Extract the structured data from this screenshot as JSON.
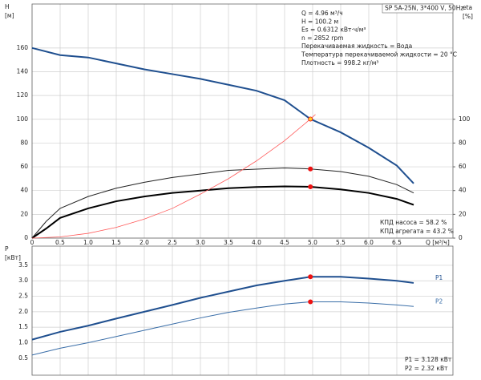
{
  "chart_data": [
    {
      "type": "line",
      "title": "SP 5A-25N, 3*400 V, 50Hz",
      "ylabel": "H",
      "yunit": "[м]",
      "y2label": "eta",
      "y2unit": "[%]",
      "xlabel": "Q [м³/ч]",
      "annotations": [
        "Q = 4.96 м³/ч",
        "H = 100.2 м",
        "Es = 0.6312 кВт·ч/м³",
        "n = 2852 rpm",
        "Перекачиваемая жидкость = Вода",
        "Температура перекачиваемой жидкости = 20 °C",
        "Плотность = 998.2 кг/м³"
      ],
      "notes": [
        "КПД насоса = 58.2 %",
        "КПД агрегата = 43.2 %"
      ],
      "xlim": [
        0,
        7.5
      ],
      "xticks": [
        0,
        0.5,
        {
          "value": 1,
          "label": "1.0"
        },
        1.5,
        {
          "value": 2,
          "label": "2.0"
        },
        2.5,
        {
          "value": 3,
          "label": "3.0"
        },
        3.5,
        {
          "value": 4,
          "label": "4.0"
        },
        4.5,
        {
          "value": 5,
          "label": "5.0"
        },
        5.5,
        {
          "value": 6,
          "label": "6.0"
        },
        6.5
      ],
      "ylim": [
        0,
        197
      ],
      "yticks": [
        0,
        20,
        40,
        60,
        80,
        100,
        120,
        140,
        160
      ],
      "y2lim": [
        0,
        197
      ],
      "y2ticks": [
        0,
        20,
        40,
        60,
        80,
        100
      ],
      "grid": true,
      "series": [
        {
          "color": "#1f4f8f",
          "width": 2,
          "axis": "y",
          "x": [
            0,
            0.5,
            1,
            1.5,
            2,
            2.5,
            3,
            3.5,
            4,
            4.5,
            4.96,
            5.5,
            6,
            6.5,
            6.8
          ],
          "values": [
            160,
            154,
            152,
            147,
            142,
            138,
            134,
            129,
            124,
            116,
            100.2,
            89,
            76,
            61,
            46
          ]
        },
        {
          "color": "#222222",
          "width": 1,
          "axis": "y2",
          "x": [
            0,
            0.25,
            0.5,
            1,
            1.5,
            2,
            2.5,
            3,
            3.5,
            4,
            4.5,
            4.96,
            5.5,
            6,
            6.5,
            6.8
          ],
          "values": [
            0,
            14,
            25,
            35,
            42,
            47,
            51,
            54,
            57,
            58,
            59,
            58.2,
            56,
            52,
            45,
            38
          ]
        },
        {
          "color": "#000000",
          "width": 2,
          "axis": "y2",
          "x": [
            0,
            0.25,
            0.5,
            1,
            1.5,
            2,
            2.5,
            3,
            3.5,
            4,
            4.5,
            4.96,
            5.5,
            6,
            6.5,
            6.8
          ],
          "values": [
            0,
            8,
            17,
            25,
            31,
            35,
            38,
            40,
            42,
            43,
            43.5,
            43.2,
            41,
            38,
            33,
            28
          ]
        },
        {
          "color": "#ff5a5a",
          "width": 0.8,
          "axis": "y",
          "x": [
            0,
            0.5,
            1,
            1.5,
            2,
            2.5,
            3,
            3.5,
            4,
            4.5,
            4.96,
            5.05
          ],
          "values": [
            0,
            1,
            4,
            9,
            16,
            25,
            37,
            50,
            65,
            82,
            100.2,
            104
          ]
        },
        {
          "mode": "markers",
          "color": "#ffcc22",
          "axis": "y",
          "x": [
            4.96
          ],
          "values": [
            100.2
          ]
        },
        {
          "mode": "markers",
          "color": "#ee1111",
          "axis": "y2",
          "x": [
            4.96,
            4.96
          ],
          "values": [
            58.2,
            43.2
          ]
        }
      ]
    },
    {
      "type": "line",
      "ylabel": "P",
      "yunit": "[кВт]",
      "notes": [
        "P1 = 3.128 кВт",
        "P2 = 2.32 кВт"
      ],
      "xlim": [
        0,
        7.5
      ],
      "ylim": [
        -0.05,
        4.12
      ],
      "yticks": [
        0.5,
        {
          "value": 1,
          "label": "1.0"
        },
        1.5,
        {
          "value": 2,
          "label": "2.0"
        },
        2.5,
        {
          "value": 3,
          "label": "3.0"
        },
        3.5
      ],
      "grid": true,
      "series": [
        {
          "name": "P1",
          "color": "#1f4f8f",
          "width": 2,
          "x": [
            0,
            0.5,
            1,
            1.5,
            2,
            2.5,
            3,
            3.5,
            4,
            4.5,
            4.96,
            5.5,
            6,
            6.5,
            6.8
          ],
          "values": [
            1.1,
            1.35,
            1.55,
            1.78,
            2.0,
            2.22,
            2.45,
            2.65,
            2.85,
            3.0,
            3.128,
            3.13,
            3.07,
            3.0,
            2.93
          ]
        },
        {
          "name": "P2",
          "color": "#3a6ea8",
          "width": 1,
          "x": [
            0,
            0.5,
            1,
            1.5,
            2,
            2.5,
            3,
            3.5,
            4,
            4.5,
            4.96,
            5.5,
            6,
            6.5,
            6.8
          ],
          "values": [
            0.6,
            0.82,
            1.0,
            1.2,
            1.4,
            1.6,
            1.8,
            1.98,
            2.12,
            2.25,
            2.32,
            2.32,
            2.28,
            2.22,
            2.17
          ]
        },
        {
          "mode": "markers",
          "color": "#ee1111",
          "x": [
            4.96,
            4.96
          ],
          "values": [
            3.128,
            2.32
          ]
        }
      ]
    }
  ]
}
